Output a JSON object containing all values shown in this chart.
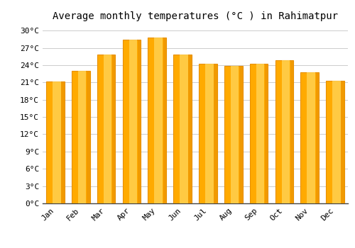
{
  "title": "Average monthly temperatures (°C ) in Rahimatpur",
  "months": [
    "Jan",
    "Feb",
    "Mar",
    "Apr",
    "May",
    "Jun",
    "Jul",
    "Aug",
    "Sep",
    "Oct",
    "Nov",
    "Dec"
  ],
  "temperatures": [
    21.2,
    23.0,
    25.8,
    28.4,
    28.8,
    25.8,
    24.2,
    23.9,
    24.2,
    24.8,
    22.8,
    21.3
  ],
  "bar_color_main": "#FFAA00",
  "bar_color_light": "#FFD050",
  "bar_color_dark": "#E89000",
  "ylim": [
    0,
    31
  ],
  "yticks": [
    0,
    3,
    6,
    9,
    12,
    15,
    18,
    21,
    24,
    27,
    30
  ],
  "ytick_labels": [
    "0°C",
    "3°C",
    "6°C",
    "9°C",
    "12°C",
    "15°C",
    "18°C",
    "21°C",
    "24°C",
    "27°C",
    "30°C"
  ],
  "background_color": "#FFFFFF",
  "grid_color": "#CCCCCC",
  "title_fontsize": 10,
  "tick_fontsize": 8,
  "font_family": "monospace"
}
